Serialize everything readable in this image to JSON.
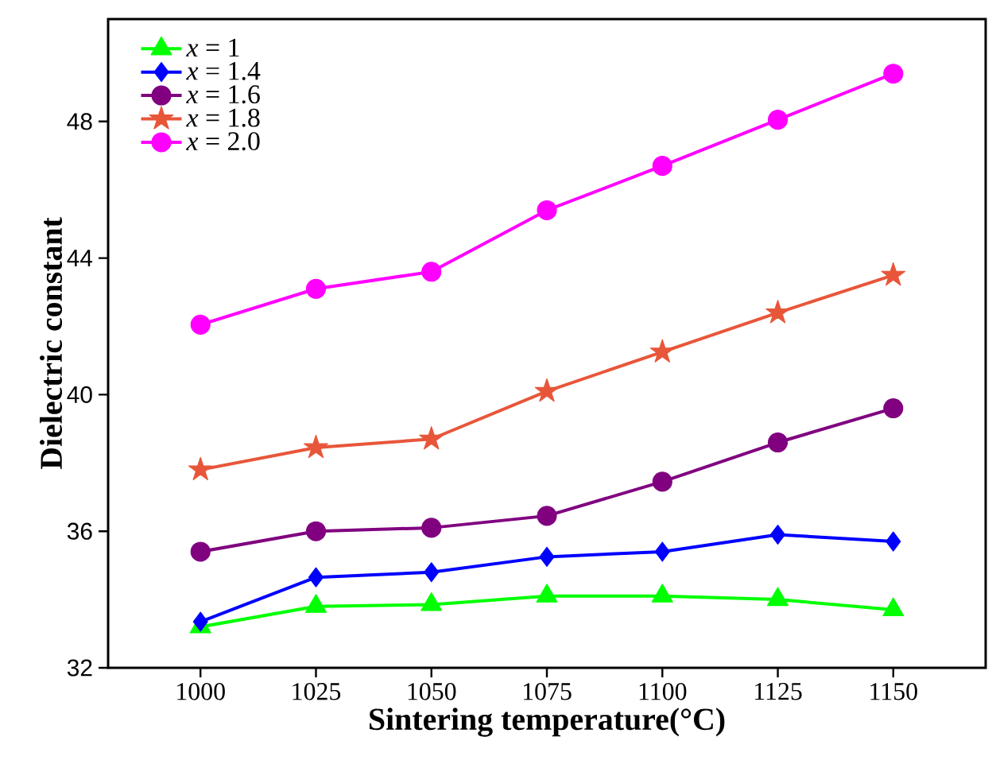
{
  "chart_data": {
    "type": "line",
    "xlabel": "Sintering temperature(°C)",
    "ylabel": "Dielectric constant",
    "x": [
      1000,
      1025,
      1050,
      1075,
      1100,
      1125,
      1150
    ],
    "xlim": [
      980,
      1170
    ],
    "xticks": [
      1000,
      1025,
      1050,
      1075,
      1100,
      1125,
      1150
    ],
    "ylim": [
      32,
      51
    ],
    "yticks": [
      32,
      36,
      40,
      44,
      48
    ],
    "legend": "top left",
    "grid": false,
    "line_style": "solid",
    "series": [
      {
        "name": "*x* = 1",
        "color": "#00ff00",
        "marker": "triangle",
        "values": [
          33.2,
          33.8,
          33.85,
          34.1,
          34.1,
          34.0,
          33.7
        ]
      },
      {
        "name": "*x* = 1.4",
        "color": "#0000ff",
        "marker": "diamond",
        "values": [
          33.35,
          34.65,
          34.8,
          35.25,
          35.4,
          35.9,
          35.7
        ]
      },
      {
        "name": "*x* = 1.6",
        "color": "#800080",
        "marker": "circle",
        "values": [
          35.4,
          36.0,
          36.1,
          36.45,
          37.45,
          38.6,
          39.6
        ]
      },
      {
        "name": "*x* = 1.8",
        "color": "#e8563a",
        "marker": "star",
        "values": [
          37.8,
          38.45,
          38.7,
          40.1,
          41.25,
          42.4,
          43.5
        ]
      },
      {
        "name": "*x* = 2.0",
        "color": "#ff00ff",
        "marker": "circle",
        "values": [
          42.05,
          43.1,
          43.6,
          45.4,
          46.7,
          48.05,
          49.4
        ]
      }
    ]
  }
}
